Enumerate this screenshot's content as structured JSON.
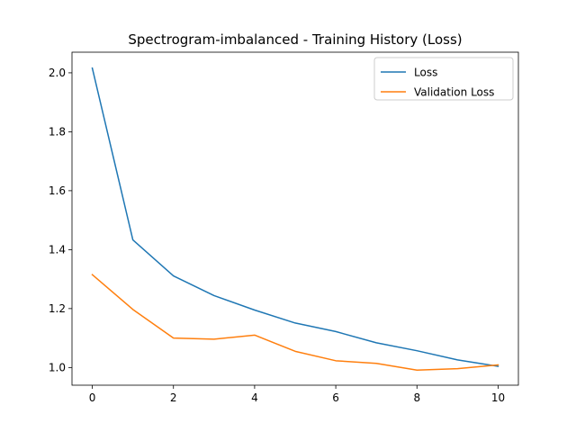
{
  "chart_data": {
    "type": "line",
    "title": "Spectrogram-imbalanced - Training History (Loss)",
    "xlabel": "",
    "ylabel": "",
    "xlim": [
      -0.5,
      10.5
    ],
    "ylim": [
      0.94,
      2.07
    ],
    "xticks": [
      0,
      2,
      4,
      6,
      8,
      10
    ],
    "xtick_labels": [
      "0",
      "2",
      "4",
      "6",
      "8",
      "10"
    ],
    "yticks": [
      1.0,
      1.2,
      1.4,
      1.6,
      1.8,
      2.0
    ],
    "ytick_labels": [
      "1.0",
      "1.2",
      "1.4",
      "1.6",
      "1.8",
      "2.0"
    ],
    "grid": false,
    "legend_position": "top-right",
    "x": [
      0,
      1,
      2,
      3,
      4,
      5,
      6,
      7,
      8,
      9,
      10
    ],
    "series": [
      {
        "name": "Loss",
        "color": "#1f77b4",
        "values": [
          2.016,
          1.433,
          1.311,
          1.244,
          1.195,
          1.151,
          1.122,
          1.084,
          1.057,
          1.026,
          1.004
        ]
      },
      {
        "name": "Validation Loss",
        "color": "#ff7f0e",
        "values": [
          1.315,
          1.197,
          1.1,
          1.096,
          1.11,
          1.055,
          1.023,
          1.014,
          0.991,
          0.996,
          1.009
        ]
      }
    ]
  }
}
